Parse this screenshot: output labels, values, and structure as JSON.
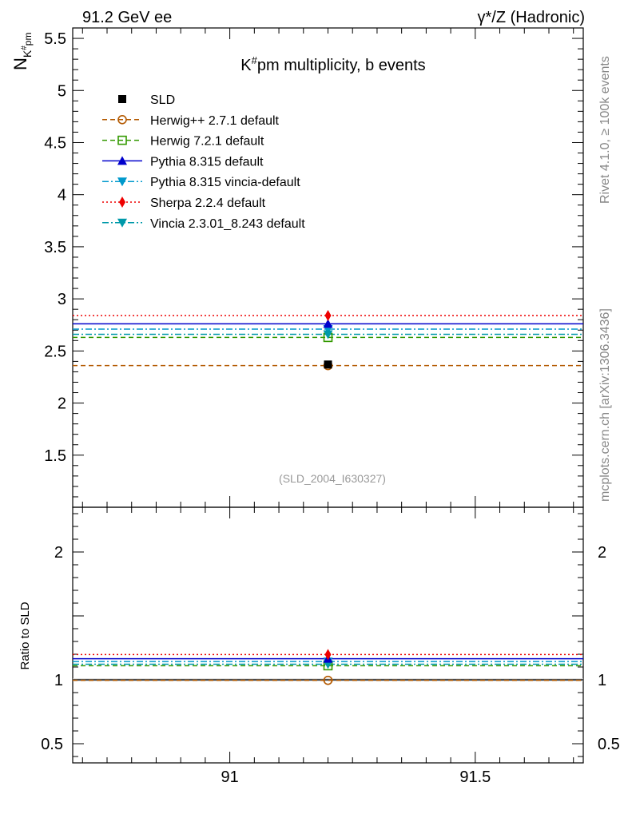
{
  "header": {
    "left": "91.2 GeV ee",
    "right": "γ*/Z (Hadronic)"
  },
  "side_labels": {
    "rivet": "Rivet 4.1.0, ≥ 100k events",
    "mcplots": "mcplots.cern.ch [arXiv:1306.3436]"
  },
  "colors": {
    "SLD": "#000000",
    "Herwig++ 2.7.1 default": "#b35900",
    "Herwig 7.2.1 default": "#339900",
    "Pythia 8.315 default": "#0000cc",
    "Pythia 8.315 vincia-default": "#0099cc",
    "Sherpa 2.2.4 default": "#ee0000",
    "Vincia 2.3.01_8.243 default": "#0099aa"
  },
  "chart_data": [
    {
      "type": "scatter",
      "title": "K#pm multiplicity, b events",
      "ylabel": "N_K#pm",
      "xlim": [
        90.68,
        91.72
      ],
      "ylim": [
        1.0,
        5.6
      ],
      "yticks": [
        "1.5",
        "2",
        "2.5",
        "3",
        "3.5",
        "4",
        "4.5",
        "5",
        "5.5"
      ],
      "annotation": "(SLD_2004_I630327)",
      "series": [
        {
          "name": "SLD",
          "style": "data",
          "x": 91.2,
          "y": 2.37,
          "marker": "square"
        },
        {
          "name": "Herwig++ 2.7.1 default",
          "style": "dashed",
          "x": 91.2,
          "y": 2.36,
          "marker": "open-circle"
        },
        {
          "name": "Herwig 7.2.1 default",
          "style": "dashed",
          "x": 91.2,
          "y": 2.63,
          "marker": "open-square"
        },
        {
          "name": "Pythia 8.315 default",
          "style": "solid",
          "x": 91.2,
          "y": 2.76,
          "marker": "triangle-up"
        },
        {
          "name": "Pythia 8.315 vincia-default",
          "style": "dashdot",
          "x": 91.2,
          "y": 2.71,
          "marker": "triangle-down"
        },
        {
          "name": "Sherpa 2.2.4 default",
          "style": "dotted",
          "x": 91.2,
          "y": 2.84,
          "marker": "diamond"
        },
        {
          "name": "Vincia 2.3.01_8.243 default",
          "style": "dashdot",
          "x": 91.2,
          "y": 2.66,
          "marker": "triangle-down"
        }
      ]
    },
    {
      "type": "scatter",
      "ylabel": "Ratio to SLD",
      "xlim": [
        90.68,
        91.72
      ],
      "ylim": [
        0.35,
        2.35
      ],
      "xticks": [
        "91",
        "91.5"
      ],
      "yticks": [
        "0.5",
        "1",
        "2"
      ],
      "series": [
        {
          "name": "SLD",
          "x": 91.2,
          "y": 1.0
        },
        {
          "name": "Herwig++ 2.7.1 default",
          "x": 91.2,
          "y": 0.996
        },
        {
          "name": "Herwig 7.2.1 default",
          "x": 91.2,
          "y": 1.11
        },
        {
          "name": "Pythia 8.315 default",
          "x": 91.2,
          "y": 1.165
        },
        {
          "name": "Pythia 8.315 vincia-default",
          "x": 91.2,
          "y": 1.143
        },
        {
          "name": "Sherpa 2.2.4 default",
          "x": 91.2,
          "y": 1.198
        },
        {
          "name": "Vincia 2.3.01_8.243 default",
          "x": 91.2,
          "y": 1.122
        }
      ]
    }
  ]
}
